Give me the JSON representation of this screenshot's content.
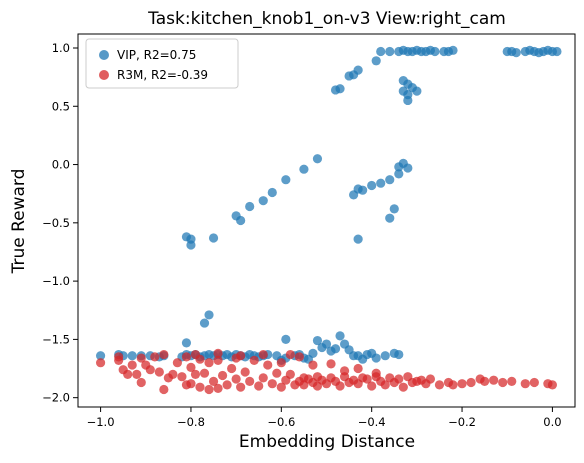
{
  "chart_data": {
    "type": "scatter",
    "title": "Task:kitchen_knob1_on-v3 View:right_cam",
    "xlabel": "Embedding Distance",
    "ylabel": "True Reward",
    "xlim": [
      -1.05,
      0.05
    ],
    "ylim": [
      -2.08,
      1.12
    ],
    "x_ticks": [
      -1.0,
      -0.8,
      -0.6,
      -0.4,
      -0.2,
      0.0
    ],
    "x_tick_labels": [
      "−1.0",
      "−0.8",
      "−0.6",
      "−0.4",
      "−0.2",
      "0.0"
    ],
    "y_ticks": [
      -2.0,
      -1.5,
      -1.0,
      -0.5,
      0.0,
      0.5,
      1.0
    ],
    "y_tick_labels": [
      "−2.0",
      "−1.5",
      "−1.0",
      "−0.5",
      "0.0",
      "0.5",
      "1.0"
    ],
    "grid": false,
    "legend_position": "upper-left",
    "series": [
      {
        "name": "VIP, R2=0.75",
        "color": "#1f77b4",
        "points": [
          [
            -1.0,
            -1.64
          ],
          [
            -0.96,
            -1.63
          ],
          [
            -0.95,
            -1.64
          ],
          [
            -0.93,
            -1.64
          ],
          [
            -0.91,
            -1.64
          ],
          [
            -0.89,
            -1.64
          ],
          [
            -0.87,
            -1.65
          ],
          [
            -0.86,
            -1.64
          ],
          [
            -0.82,
            -1.65
          ],
          [
            -0.81,
            -1.63
          ],
          [
            -0.8,
            -1.64
          ],
          [
            -0.79,
            -1.63
          ],
          [
            -0.78,
            -1.65
          ],
          [
            -0.77,
            -1.64
          ],
          [
            -0.76,
            -1.63
          ],
          [
            -0.75,
            -1.64
          ],
          [
            -0.74,
            -1.63
          ],
          [
            -0.73,
            -1.64
          ],
          [
            -0.72,
            -1.63
          ],
          [
            -0.71,
            -1.65
          ],
          [
            -0.7,
            -1.63
          ],
          [
            -0.69,
            -1.64
          ],
          [
            -0.68,
            -1.65
          ],
          [
            -0.67,
            -1.63
          ],
          [
            -0.66,
            -1.64
          ],
          [
            -0.65,
            -1.65
          ],
          [
            -0.64,
            -1.64
          ],
          [
            -0.63,
            -1.63
          ],
          [
            -0.61,
            -1.64
          ],
          [
            -0.6,
            -1.68
          ],
          [
            -0.59,
            -1.66
          ],
          [
            -0.57,
            -1.64
          ],
          [
            -0.56,
            -1.63
          ],
          [
            -0.55,
            -1.66
          ],
          [
            -0.54,
            -1.67
          ],
          [
            -0.53,
            -1.62
          ],
          [
            -0.52,
            -1.51
          ],
          [
            -0.51,
            -1.57
          ],
          [
            -0.5,
            -1.54
          ],
          [
            -0.49,
            -1.6
          ],
          [
            -0.48,
            -1.58
          ],
          [
            -0.47,
            -1.47
          ],
          [
            -0.46,
            -1.54
          ],
          [
            -0.45,
            -1.59
          ],
          [
            -0.44,
            -1.64
          ],
          [
            -0.43,
            -1.64
          ],
          [
            -0.42,
            -1.67
          ],
          [
            -0.41,
            -1.63
          ],
          [
            -0.4,
            -1.62
          ],
          [
            -0.39,
            -1.66
          ],
          [
            -0.37,
            -1.64
          ],
          [
            -0.35,
            -1.62
          ],
          [
            -0.34,
            -1.63
          ],
          [
            -0.77,
            -1.36
          ],
          [
            -0.76,
            -1.29
          ],
          [
            -0.81,
            -1.53
          ],
          [
            -0.59,
            -1.5
          ],
          [
            -0.81,
            -0.62
          ],
          [
            -0.8,
            -0.69
          ],
          [
            -0.8,
            -0.64
          ],
          [
            -0.75,
            -0.63
          ],
          [
            -0.7,
            -0.44
          ],
          [
            -0.69,
            -0.48
          ],
          [
            -0.67,
            -0.36
          ],
          [
            -0.64,
            -0.31
          ],
          [
            -0.62,
            -0.24
          ],
          [
            -0.59,
            -0.13
          ],
          [
            -0.55,
            -0.04
          ],
          [
            -0.52,
            0.05
          ],
          [
            -0.43,
            -0.64
          ],
          [
            -0.44,
            -0.26
          ],
          [
            -0.43,
            -0.21
          ],
          [
            -0.42,
            -0.22
          ],
          [
            -0.4,
            -0.18
          ],
          [
            -0.38,
            -0.16
          ],
          [
            -0.36,
            -0.13
          ],
          [
            -0.36,
            -0.46
          ],
          [
            -0.35,
            -0.38
          ],
          [
            -0.34,
            -0.08
          ],
          [
            -0.34,
            -0.02
          ],
          [
            -0.33,
            0.01
          ],
          [
            -0.32,
            -0.03
          ],
          [
            -0.48,
            0.64
          ],
          [
            -0.47,
            0.65
          ],
          [
            -0.45,
            0.76
          ],
          [
            -0.44,
            0.77
          ],
          [
            -0.43,
            0.81
          ],
          [
            -0.39,
            0.89
          ],
          [
            -0.38,
            0.97
          ],
          [
            -0.36,
            0.97
          ],
          [
            -0.34,
            0.97
          ],
          [
            -0.33,
            0.98
          ],
          [
            -0.32,
            0.97
          ],
          [
            -0.31,
            0.97
          ],
          [
            -0.3,
            0.98
          ],
          [
            -0.29,
            0.97
          ],
          [
            -0.28,
            0.97
          ],
          [
            -0.27,
            0.98
          ],
          [
            -0.26,
            0.97
          ],
          [
            -0.24,
            0.97
          ],
          [
            -0.23,
            0.97
          ],
          [
            -0.22,
            0.98
          ],
          [
            -0.33,
            0.72
          ],
          [
            -0.32,
            0.69
          ],
          [
            -0.31,
            0.66
          ],
          [
            -0.33,
            0.63
          ],
          [
            -0.32,
            0.6
          ],
          [
            -0.32,
            0.55
          ],
          [
            -0.3,
            0.63
          ],
          [
            -0.1,
            0.97
          ],
          [
            -0.09,
            0.97
          ],
          [
            -0.08,
            0.96
          ],
          [
            -0.06,
            0.97
          ],
          [
            -0.05,
            0.98
          ],
          [
            -0.04,
            0.97
          ],
          [
            -0.03,
            0.96
          ],
          [
            -0.02,
            0.97
          ],
          [
            -0.01,
            0.98
          ],
          [
            0.0,
            0.97
          ],
          [
            0.01,
            0.97
          ]
        ]
      },
      {
        "name": "R3M, R2=-0.39",
        "color": "#d62728",
        "points": [
          [
            -1.0,
            -1.7
          ],
          [
            -0.96,
            -1.68
          ],
          [
            -0.95,
            -1.76
          ],
          [
            -0.94,
            -1.8
          ],
          [
            -0.93,
            -1.72
          ],
          [
            -0.92,
            -1.8
          ],
          [
            -0.91,
            -1.87
          ],
          [
            -0.9,
            -1.72
          ],
          [
            -0.89,
            -1.76
          ],
          [
            -0.88,
            -1.65
          ],
          [
            -0.87,
            -1.78
          ],
          [
            -0.86,
            -1.93
          ],
          [
            -0.85,
            -1.83
          ],
          [
            -0.84,
            -1.8
          ],
          [
            -0.83,
            -1.7
          ],
          [
            -0.82,
            -1.82
          ],
          [
            -0.81,
            -1.65
          ],
          [
            -0.81,
            -1.89
          ],
          [
            -0.8,
            -1.74
          ],
          [
            -0.8,
            -1.88
          ],
          [
            -0.79,
            -1.8
          ],
          [
            -0.78,
            -1.67
          ],
          [
            -0.78,
            -1.91
          ],
          [
            -0.77,
            -1.79
          ],
          [
            -0.76,
            -1.93
          ],
          [
            -0.76,
            -1.7
          ],
          [
            -0.75,
            -1.86
          ],
          [
            -0.74,
            -1.92
          ],
          [
            -0.74,
            -1.68
          ],
          [
            -0.73,
            -1.81
          ],
          [
            -0.72,
            -1.89
          ],
          [
            -0.71,
            -1.75
          ],
          [
            -0.7,
            -1.84
          ],
          [
            -0.7,
            -1.66
          ],
          [
            -0.69,
            -1.91
          ],
          [
            -0.68,
            -1.78
          ],
          [
            -0.67,
            -1.86
          ],
          [
            -0.66,
            -1.68
          ],
          [
            -0.65,
            -1.9
          ],
          [
            -0.64,
            -1.83
          ],
          [
            -0.63,
            -1.72
          ],
          [
            -0.62,
            -1.88
          ],
          [
            -0.61,
            -1.79
          ],
          [
            -0.6,
            -1.91
          ],
          [
            -0.6,
            -1.7
          ],
          [
            -0.59,
            -1.85
          ],
          [
            -0.58,
            -1.8
          ],
          [
            -0.57,
            -1.89
          ],
          [
            -0.56,
            -1.86
          ],
          [
            -0.55,
            -1.83
          ],
          [
            -0.55,
            -1.89
          ],
          [
            -0.54,
            -1.84
          ],
          [
            -0.53,
            -1.87
          ],
          [
            -0.52,
            -1.82
          ],
          [
            -0.52,
            -1.9
          ],
          [
            -0.51,
            -1.85
          ],
          [
            -0.5,
            -1.88
          ],
          [
            -0.49,
            -1.83
          ],
          [
            -0.48,
            -1.86
          ],
          [
            -0.47,
            -1.9
          ],
          [
            -0.46,
            -1.82
          ],
          [
            -0.45,
            -1.87
          ],
          [
            -0.44,
            -1.85
          ],
          [
            -0.43,
            -1.88
          ],
          [
            -0.42,
            -1.83
          ],
          [
            -0.41,
            -1.84
          ],
          [
            -0.4,
            -1.9
          ],
          [
            -0.39,
            -1.82
          ],
          [
            -0.38,
            -1.86
          ],
          [
            -0.37,
            -1.89
          ],
          [
            -0.36,
            -1.83
          ],
          [
            -0.35,
            -1.87
          ],
          [
            -0.34,
            -1.84
          ],
          [
            -0.33,
            -1.91
          ],
          [
            -0.32,
            -1.82
          ],
          [
            -0.31,
            -1.87
          ],
          [
            -0.3,
            -1.86
          ],
          [
            -0.29,
            -1.85
          ],
          [
            -0.28,
            -1.88
          ],
          [
            -0.27,
            -1.84
          ],
          [
            -0.25,
            -1.89
          ],
          [
            -0.23,
            -1.87
          ],
          [
            -0.22,
            -1.89
          ],
          [
            -0.2,
            -1.88
          ],
          [
            -0.18,
            -1.87
          ],
          [
            -0.16,
            -1.84
          ],
          [
            -0.15,
            -1.86
          ],
          [
            -0.13,
            -1.85
          ],
          [
            -0.11,
            -1.87
          ],
          [
            -0.09,
            -1.86
          ],
          [
            -0.06,
            -1.88
          ],
          [
            -0.04,
            -1.87
          ],
          [
            -0.01,
            -1.88
          ],
          [
            0.0,
            -1.89
          ],
          [
            -0.96,
            -1.65
          ],
          [
            -0.91,
            -1.66
          ],
          [
            -0.86,
            -1.63
          ],
          [
            -0.79,
            -1.63
          ],
          [
            -0.74,
            -1.62
          ],
          [
            -0.69,
            -1.64
          ],
          [
            -0.64,
            -1.63
          ],
          [
            -0.58,
            -1.63
          ],
          [
            -0.56,
            -1.65
          ],
          [
            -0.53,
            -1.72
          ],
          [
            -0.49,
            -1.71
          ],
          [
            -0.46,
            -1.77
          ],
          [
            -0.43,
            -1.75
          ],
          [
            -0.39,
            -1.79
          ]
        ]
      }
    ]
  }
}
